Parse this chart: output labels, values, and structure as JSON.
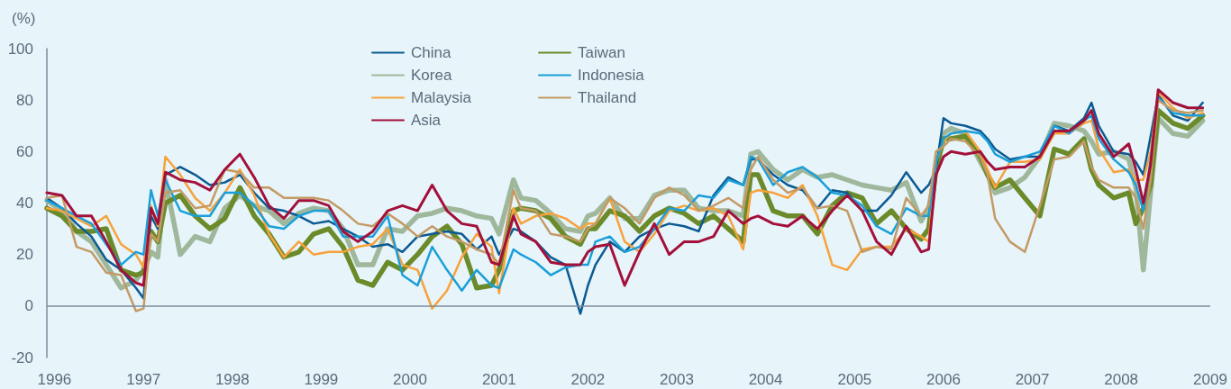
{
  "chart_data": {
    "type": "line",
    "ylabel": "(%)",
    "x": [
      "1995-12",
      "1996-02",
      "1996-04",
      "1996-06",
      "1996-08",
      "1996-10",
      "1996-12",
      "1997-01",
      "1997-02",
      "1997-03",
      "1997-04",
      "1997-06",
      "1997-08",
      "1997-10",
      "1997-12",
      "1998-02",
      "1998-04",
      "1998-06",
      "1998-08",
      "1998-10",
      "1998-12",
      "1999-02",
      "1999-04",
      "1999-06",
      "1999-08",
      "1999-10",
      "1999-12",
      "2000-02",
      "2000-04",
      "2000-06",
      "2000-08",
      "2000-10",
      "2000-12",
      "2001-01",
      "2001-03",
      "2001-04",
      "2001-06",
      "2001-08",
      "2001-10",
      "2001-12",
      "2002-01",
      "2002-02",
      "2002-04",
      "2002-06",
      "2002-08",
      "2002-10",
      "2002-12",
      "2003-02",
      "2003-04",
      "2003-06",
      "2003-08",
      "2003-10",
      "2003-11",
      "2003-12",
      "2004-02",
      "2004-04",
      "2004-06",
      "2004-08",
      "2004-10",
      "2004-12",
      "2005-02",
      "2005-04",
      "2005-06",
      "2005-08",
      "2005-10",
      "2005-11",
      "2005-12",
      "2006-01",
      "2006-02",
      "2006-04",
      "2006-06",
      "2006-07",
      "2006-08",
      "2006-10",
      "2006-12",
      "2007-02",
      "2007-04",
      "2007-06",
      "2007-08",
      "2007-09",
      "2007-10",
      "2007-12",
      "2008-02",
      "2008-03",
      "2008-04",
      "2008-05",
      "2008-06",
      "2008-08",
      "2008-10",
      "2008-12"
    ],
    "series": [
      {
        "name": "China",
        "color": "#0b5a92",
        "values": [
          42,
          38,
          32,
          27,
          18,
          14,
          7,
          3,
          35,
          30,
          51,
          54,
          51,
          47,
          48,
          51,
          44,
          38,
          37,
          35,
          32,
          33,
          30,
          27,
          23,
          24,
          21,
          27,
          28,
          29,
          28,
          22,
          27,
          20,
          30,
          29,
          25,
          19,
          16,
          -3,
          8,
          16,
          25,
          21,
          27,
          30,
          32,
          31,
          29,
          43,
          50,
          47,
          57,
          57,
          51,
          47,
          45,
          38,
          45,
          44,
          37,
          37,
          43,
          52,
          44,
          47,
          53,
          73,
          71,
          70,
          68,
          65,
          61,
          57,
          58,
          58,
          70,
          68,
          73,
          79,
          70,
          60,
          59,
          56,
          51,
          66,
          82,
          74,
          72,
          79
        ]
      },
      {
        "name": "Korea",
        "color": "#9fb89c",
        "values": [
          41,
          37,
          29,
          25,
          16,
          7,
          10,
          14,
          21,
          19,
          49,
          20,
          27,
          25,
          38,
          43,
          39,
          37,
          32,
          36,
          38,
          37,
          30,
          16,
          16,
          30,
          29,
          35,
          36,
          38,
          37,
          35,
          34,
          28,
          49,
          42,
          41,
          36,
          30,
          29,
          35,
          36,
          42,
          34,
          34,
          43,
          45,
          45,
          38,
          37,
          37,
          35,
          59,
          60,
          53,
          49,
          53,
          50,
          51,
          49,
          47,
          46,
          45,
          48,
          33,
          38,
          53,
          67,
          69,
          67,
          56,
          51,
          44,
          46,
          50,
          58,
          71,
          70,
          68,
          64,
          59,
          60,
          57,
          46,
          14,
          44,
          73,
          67,
          66,
          72
        ]
      },
      {
        "name": "Malaysia",
        "color": "#f7a23b",
        "values": [
          38,
          37,
          34,
          31,
          35,
          24,
          20,
          15,
          39,
          31,
          58,
          51,
          42,
          37,
          44,
          53,
          43,
          28,
          19,
          25,
          20,
          21,
          21,
          23,
          24,
          30,
          16,
          14,
          -1,
          6,
          19,
          28,
          23,
          5,
          38,
          32,
          35,
          36,
          34,
          30,
          32,
          32,
          42,
          25,
          21,
          28,
          37,
          39,
          37,
          38,
          35,
          22,
          44,
          45,
          44,
          42,
          47,
          35,
          16,
          14,
          22,
          23,
          23,
          30,
          27,
          25,
          56,
          64,
          67,
          68,
          60,
          53,
          46,
          56,
          56,
          57,
          67,
          67,
          71,
          72,
          61,
          52,
          53,
          49,
          49,
          60,
          83,
          77,
          73,
          75
        ]
      },
      {
        "name": "Asia",
        "color": "#a3103a",
        "values": [
          44,
          43,
          35,
          35,
          25,
          14,
          9,
          8,
          38,
          32,
          52,
          49,
          48,
          45,
          53,
          59,
          50,
          39,
          34,
          41,
          41,
          39,
          29,
          25,
          29,
          37,
          39,
          37,
          47,
          37,
          32,
          31,
          17,
          16,
          35,
          28,
          25,
          17,
          16,
          16,
          21,
          23,
          24,
          8,
          21,
          32,
          20,
          25,
          25,
          27,
          37,
          32,
          34,
          35,
          32,
          31,
          35,
          30,
          37,
          43,
          37,
          25,
          20,
          31,
          21,
          22,
          51,
          58,
          60,
          59,
          60,
          56,
          53,
          54,
          54,
          58,
          68,
          68,
          72,
          76,
          67,
          58,
          63,
          53,
          40,
          55,
          84,
          79,
          77,
          77
        ]
      },
      {
        "name": "Taiwan",
        "color": "#6b8b2a",
        "values": [
          38,
          35,
          29,
          29,
          30,
          14,
          12,
          13,
          29,
          25,
          40,
          43,
          35,
          30,
          34,
          46,
          35,
          28,
          19,
          21,
          28,
          30,
          23,
          10,
          8,
          17,
          14,
          20,
          27,
          31,
          24,
          7,
          8,
          14,
          37,
          38,
          37,
          34,
          27,
          24,
          30,
          30,
          37,
          35,
          29,
          35,
          38,
          36,
          32,
          35,
          30,
          25,
          51,
          51,
          37,
          35,
          35,
          28,
          39,
          44,
          42,
          32,
          37,
          30,
          26,
          30,
          53,
          65,
          65,
          66,
          58,
          51,
          46,
          49,
          42,
          35,
          61,
          59,
          65,
          53,
          47,
          42,
          44,
          32,
          38,
          47,
          76,
          71,
          69,
          74
        ]
      },
      {
        "name": "Indonesia",
        "color": "#1a9fd9",
        "values": [
          41,
          38,
          35,
          32,
          24,
          16,
          21,
          20,
          45,
          35,
          49,
          37,
          35,
          35,
          44,
          44,
          39,
          31,
          30,
          35,
          37,
          37,
          27,
          27,
          27,
          35,
          12,
          8,
          23,
          14,
          6,
          14,
          8,
          7,
          22,
          20,
          17,
          12,
          15,
          16,
          16,
          25,
          27,
          21,
          23,
          30,
          38,
          37,
          43,
          42,
          49,
          47,
          58,
          57,
          47,
          52,
          54,
          50,
          44,
          43,
          39,
          31,
          28,
          38,
          35,
          35,
          56,
          65,
          67,
          68,
          67,
          64,
          59,
          56,
          58,
          60,
          70,
          67,
          72,
          74,
          65,
          57,
          52,
          47,
          37,
          57,
          81,
          75,
          74,
          74
        ]
      },
      {
        "name": "Thailand",
        "color": "#c49a64",
        "values": [
          42,
          43,
          23,
          21,
          13,
          12,
          -2,
          -1,
          28,
          25,
          44,
          45,
          38,
          39,
          53,
          52,
          46,
          46,
          42,
          42,
          42,
          41,
          37,
          32,
          31,
          36,
          32,
          27,
          31,
          27,
          25,
          22,
          20,
          16,
          45,
          38,
          37,
          28,
          27,
          25,
          30,
          32,
          42,
          38,
          32,
          42,
          46,
          43,
          37,
          39,
          42,
          38,
          53,
          58,
          49,
          44,
          46,
          38,
          39,
          37,
          21,
          23,
          22,
          42,
          35,
          39,
          60,
          62,
          65,
          64,
          58,
          51,
          34,
          25,
          21,
          39,
          57,
          58,
          64,
          54,
          49,
          46,
          46,
          42,
          30,
          49,
          80,
          76,
          75,
          76
        ]
      }
    ],
    "xlim": [
      "1995-12",
      "2009-01"
    ],
    "xticks": [
      "1996",
      "1997",
      "1998",
      "1999",
      "2000",
      "2001",
      "2002",
      "2003",
      "2004",
      "2005",
      "2006",
      "2007",
      "2008",
      "2009"
    ],
    "ylim": [
      -20,
      100
    ],
    "yticks": [
      -20,
      0,
      20,
      40,
      60,
      80,
      100
    ],
    "ref_lines": [
      {
        "axis": "y",
        "value": 0,
        "color": "#7d8c9a"
      }
    ],
    "legend": "top",
    "marker": "none",
    "line_style": "solid"
  }
}
